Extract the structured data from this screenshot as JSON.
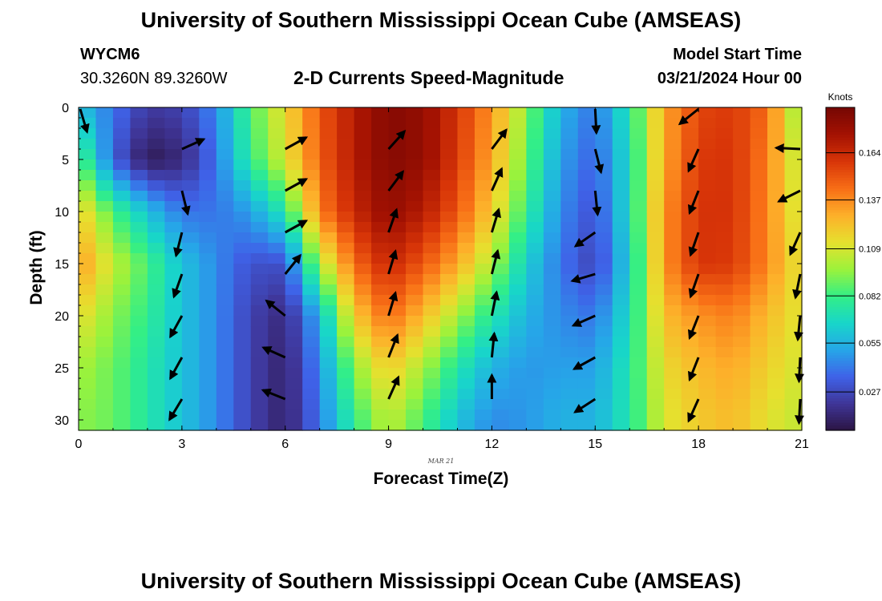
{
  "header": {
    "title": "University of Southern Mississippi Ocean Cube (AMSEAS)",
    "station_id": "WYCM6",
    "location": "30.3260N  89.3260W",
    "plot_title": "2-D Currents Speed-Magnitude",
    "model_start_label": "Model Start Time",
    "model_start_value": "03/21/2024 Hour 00"
  },
  "footer": {
    "title": "University of Southern Mississippi Ocean Cube (AMSEAS)"
  },
  "chart_data": {
    "type": "heatmap",
    "title": "2-D Currents Speed-Magnitude",
    "xlabel": "Forecast Time(Z)",
    "ylabel": "Depth (ft)",
    "date_label": "MAR 21",
    "x_ticks": [
      0,
      3,
      6,
      9,
      12,
      15,
      18,
      21
    ],
    "y_ticks": [
      0,
      5,
      10,
      15,
      20,
      25,
      30
    ],
    "xlim": [
      0,
      21
    ],
    "ylim": [
      0,
      31
    ],
    "colorbar": {
      "label": "Knots",
      "ticks": [
        0.027,
        0.055,
        0.082,
        0.109,
        0.137,
        0.164
      ],
      "range": [
        0.005,
        0.19
      ],
      "colors": [
        "#2b1442",
        "#3f3597",
        "#3f62e8",
        "#26a6e8",
        "#18d6c9",
        "#33ef86",
        "#9cf23b",
        "#e6e02e",
        "#fdb02a",
        "#f86e16",
        "#d83508",
        "#a41202",
        "#760703"
      ]
    },
    "speed_profiles": [
      {
        "time": 0,
        "depths": [
          0,
          5,
          10,
          15,
          20,
          25,
          30
        ],
        "speeds": [
          0.06,
          0.09,
          0.12,
          0.135,
          0.115,
          0.1,
          0.095
        ]
      },
      {
        "time": 1,
        "depths": [
          0,
          5,
          10,
          15,
          20,
          25,
          30
        ],
        "speeds": [
          0.04,
          0.035,
          0.085,
          0.105,
          0.095,
          0.09,
          0.09
        ]
      },
      {
        "time": 2,
        "depths": [
          0,
          5,
          10,
          15,
          20,
          25,
          30
        ],
        "speeds": [
          0.022,
          0.008,
          0.06,
          0.085,
          0.08,
          0.075,
          0.075
        ]
      },
      {
        "time": 3,
        "depths": [
          0,
          5,
          10,
          15,
          20,
          25,
          30
        ],
        "speeds": [
          0.025,
          0.015,
          0.04,
          0.06,
          0.06,
          0.06,
          0.06
        ]
      },
      {
        "time": 4,
        "depths": [
          0,
          5,
          10,
          15,
          20,
          25,
          30
        ],
        "speeds": [
          0.045,
          0.04,
          0.04,
          0.045,
          0.045,
          0.045,
          0.045
        ]
      },
      {
        "time": 5,
        "depths": [
          0,
          5,
          10,
          15,
          20,
          25,
          30
        ],
        "speeds": [
          0.085,
          0.08,
          0.05,
          0.03,
          0.025,
          0.025,
          0.025
        ]
      },
      {
        "time": 6,
        "depths": [
          0,
          5,
          10,
          15,
          20,
          25,
          30
        ],
        "speeds": [
          0.115,
          0.11,
          0.075,
          0.03,
          0.015,
          0.012,
          0.012
        ]
      },
      {
        "time": 7,
        "depths": [
          0,
          5,
          10,
          15,
          20,
          25,
          30
        ],
        "speeds": [
          0.15,
          0.148,
          0.14,
          0.1,
          0.055,
          0.045,
          0.04
        ]
      },
      {
        "time": 8,
        "depths": [
          0,
          5,
          10,
          15,
          20,
          25,
          30
        ],
        "speeds": [
          0.17,
          0.17,
          0.165,
          0.145,
          0.12,
          0.095,
          0.08
        ]
      },
      {
        "time": 9,
        "depths": [
          0,
          5,
          10,
          15,
          20,
          25,
          30
        ],
        "speeds": [
          0.185,
          0.185,
          0.18,
          0.165,
          0.145,
          0.12,
          0.105
        ]
      },
      {
        "time": 10,
        "depths": [
          0,
          5,
          10,
          15,
          20,
          25,
          30
        ],
        "speeds": [
          0.18,
          0.18,
          0.17,
          0.15,
          0.125,
          0.1,
          0.085
        ]
      },
      {
        "time": 11,
        "depths": [
          0,
          5,
          10,
          15,
          20,
          25,
          30
        ],
        "speeds": [
          0.16,
          0.158,
          0.15,
          0.13,
          0.1,
          0.075,
          0.06
        ]
      },
      {
        "time": 12,
        "depths": [
          0,
          5,
          10,
          15,
          20,
          25,
          30
        ],
        "speeds": [
          0.135,
          0.13,
          0.12,
          0.1,
          0.075,
          0.055,
          0.045
        ]
      },
      {
        "time": 13,
        "depths": [
          0,
          5,
          10,
          15,
          20,
          25,
          30
        ],
        "speeds": [
          0.095,
          0.09,
          0.08,
          0.065,
          0.055,
          0.048,
          0.048
        ]
      },
      {
        "time": 14,
        "depths": [
          0,
          5,
          10,
          15,
          20,
          25,
          30
        ],
        "speeds": [
          0.055,
          0.05,
          0.045,
          0.04,
          0.045,
          0.05,
          0.055
        ]
      },
      {
        "time": 15,
        "depths": [
          0,
          5,
          10,
          15,
          20,
          25,
          30
        ],
        "speeds": [
          0.04,
          0.035,
          0.03,
          0.025,
          0.04,
          0.05,
          0.055
        ]
      },
      {
        "time": 16,
        "depths": [
          0,
          5,
          10,
          15,
          20,
          25,
          30
        ],
        "speeds": [
          0.075,
          0.07,
          0.07,
          0.065,
          0.07,
          0.075,
          0.075
        ]
      },
      {
        "time": 17,
        "depths": [
          0,
          5,
          10,
          15,
          20,
          25,
          30
        ],
        "speeds": [
          0.13,
          0.13,
          0.135,
          0.135,
          0.125,
          0.115,
          0.11
        ]
      },
      {
        "time": 18,
        "depths": [
          0,
          5,
          10,
          15,
          20,
          25,
          30
        ],
        "speeds": [
          0.155,
          0.158,
          0.16,
          0.16,
          0.135,
          0.125,
          0.12
        ]
      },
      {
        "time": 19,
        "depths": [
          0,
          5,
          10,
          15,
          20,
          25,
          30
        ],
        "speeds": [
          0.158,
          0.16,
          0.16,
          0.158,
          0.14,
          0.13,
          0.125
        ]
      },
      {
        "time": 20,
        "depths": [
          0,
          5,
          10,
          15,
          20,
          25,
          30
        ],
        "speeds": [
          0.145,
          0.14,
          0.138,
          0.138,
          0.125,
          0.118,
          0.112
        ]
      },
      {
        "time": 21,
        "depths": [
          0,
          5,
          10,
          15,
          20,
          25,
          30
        ],
        "speeds": [
          0.09,
          0.1,
          0.105,
          0.11,
          0.11,
          0.108,
          0.105
        ]
      }
    ],
    "vector_series": [
      {
        "time": 0,
        "vectors": [
          {
            "depth": 0,
            "u": 0.3,
            "v": -1.0
          }
        ]
      },
      {
        "time": 3,
        "vectors": [
          {
            "depth": 4,
            "u": 1.0,
            "v": 0.45
          },
          {
            "depth": 8,
            "u": 0.25,
            "v": -1.0
          },
          {
            "depth": 12,
            "u": -0.25,
            "v": -1.0
          },
          {
            "depth": 16,
            "u": -0.35,
            "v": -1.0
          },
          {
            "depth": 20,
            "u": -0.55,
            "v": -1.0
          },
          {
            "depth": 24,
            "u": -0.55,
            "v": -1.0
          },
          {
            "depth": 28,
            "u": -0.6,
            "v": -1.0
          }
        ]
      },
      {
        "time": 6,
        "vectors": [
          {
            "depth": 4,
            "u": 1.0,
            "v": 0.55
          },
          {
            "depth": 8,
            "u": 1.0,
            "v": 0.55
          },
          {
            "depth": 12,
            "u": 1.0,
            "v": 0.55
          },
          {
            "depth": 16,
            "u": 0.8,
            "v": 1.0
          },
          {
            "depth": 20,
            "u": -1.0,
            "v": 0.8
          },
          {
            "depth": 24,
            "u": -1.0,
            "v": 0.45
          },
          {
            "depth": 28,
            "u": -1.0,
            "v": 0.4
          }
        ]
      },
      {
        "time": 9,
        "vectors": [
          {
            "depth": 4,
            "u": 0.9,
            "v": 1.0
          },
          {
            "depth": 8,
            "u": 0.75,
            "v": 1.0
          },
          {
            "depth": 12,
            "u": 0.35,
            "v": 1.0
          },
          {
            "depth": 16,
            "u": 0.3,
            "v": 1.0
          },
          {
            "depth": 20,
            "u": 0.3,
            "v": 1.0
          },
          {
            "depth": 24,
            "u": 0.4,
            "v": 1.0
          },
          {
            "depth": 28,
            "u": 0.45,
            "v": 1.0
          }
        ]
      },
      {
        "time": 12,
        "vectors": [
          {
            "depth": 4,
            "u": 0.75,
            "v": 1.0
          },
          {
            "depth": 8,
            "u": 0.45,
            "v": 1.0
          },
          {
            "depth": 12,
            "u": 0.3,
            "v": 1.0
          },
          {
            "depth": 16,
            "u": 0.25,
            "v": 1.0
          },
          {
            "depth": 20,
            "u": 0.2,
            "v": 1.0
          },
          {
            "depth": 24,
            "u": 0.1,
            "v": 1.0
          },
          {
            "depth": 28,
            "u": 0.0,
            "v": 1.0
          }
        ]
      },
      {
        "time": 15,
        "vectors": [
          {
            "depth": 0,
            "u": 0.05,
            "v": -1.0
          },
          {
            "depth": 4,
            "u": 0.25,
            "v": -1.0
          },
          {
            "depth": 8,
            "u": 0.1,
            "v": -1.0
          },
          {
            "depth": 12,
            "u": -1.0,
            "v": -0.7
          },
          {
            "depth": 16,
            "u": -1.0,
            "v": -0.3
          },
          {
            "depth": 20,
            "u": -1.0,
            "v": -0.45
          },
          {
            "depth": 24,
            "u": -1.0,
            "v": -0.55
          },
          {
            "depth": 28,
            "u": -1.0,
            "v": -0.65
          }
        ]
      },
      {
        "time": 18,
        "vectors": [
          {
            "depth": 0,
            "u": -1.0,
            "v": -0.8
          },
          {
            "depth": 4,
            "u": -0.45,
            "v": -1.0
          },
          {
            "depth": 8,
            "u": -0.4,
            "v": -1.0
          },
          {
            "depth": 12,
            "u": -0.35,
            "v": -1.0
          },
          {
            "depth": 16,
            "u": -0.35,
            "v": -1.0
          },
          {
            "depth": 20,
            "u": -0.4,
            "v": -1.0
          },
          {
            "depth": 24,
            "u": -0.4,
            "v": -1.0
          },
          {
            "depth": 28,
            "u": -0.45,
            "v": -1.0
          }
        ]
      },
      {
        "time": 21,
        "vectors": [
          {
            "depth": 4,
            "u": -1.0,
            "v": 0.05
          },
          {
            "depth": 8,
            "u": -1.0,
            "v": -0.5
          },
          {
            "depth": 12,
            "u": -0.45,
            "v": -1.0
          },
          {
            "depth": 16,
            "u": -0.2,
            "v": -1.0
          },
          {
            "depth": 20,
            "u": -0.1,
            "v": -1.0
          },
          {
            "depth": 24,
            "u": -0.05,
            "v": -1.0
          },
          {
            "depth": 28,
            "u": -0.05,
            "v": -1.0
          }
        ]
      }
    ]
  }
}
